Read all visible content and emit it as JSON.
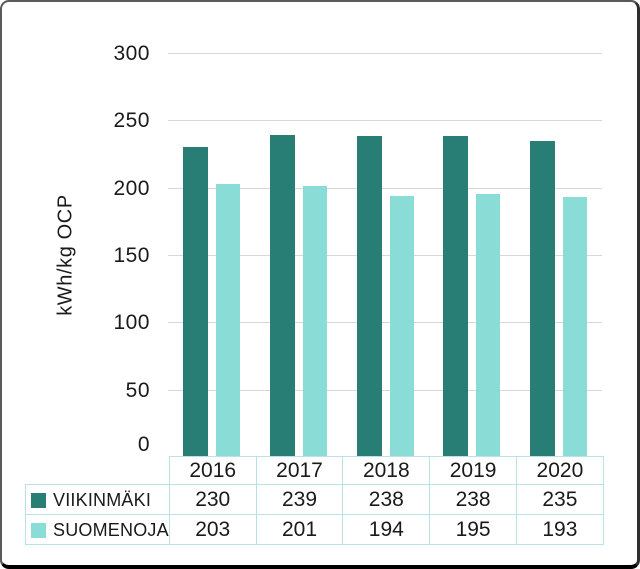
{
  "chart_data": {
    "type": "bar",
    "title": "",
    "categories": [
      "2016",
      "2017",
      "2018",
      "2019",
      "2020"
    ],
    "series": [
      {
        "name": "VIIKINMÄKI",
        "color": "#287d75",
        "values": [
          230,
          239,
          238,
          238,
          235
        ]
      },
      {
        "name": "SUOMENOJA",
        "color": "#8adcd6",
        "values": [
          203,
          201,
          194,
          195,
          193
        ]
      }
    ],
    "xlabel": "",
    "ylabel": "kWh/kg OCP",
    "ylim": [
      0,
      300
    ],
    "yticks": [
      0,
      50,
      100,
      150,
      200,
      250,
      300
    ],
    "grid": true,
    "legend_position": "left column of data table",
    "data_table_shown": true
  },
  "colors": {
    "series_dark": "#287d75",
    "series_light": "#8adcd6",
    "gridline": "#d8d8d8",
    "table_border": "#b9e2e8",
    "text": "#1a1a1a",
    "frame_border": "#000000",
    "background": "#ffffff"
  }
}
